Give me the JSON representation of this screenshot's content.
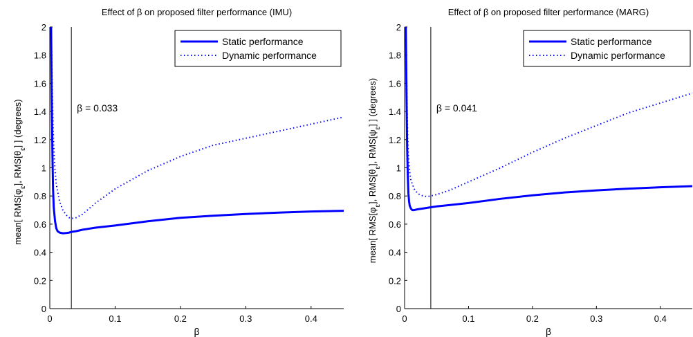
{
  "charts": [
    {
      "id": "imu",
      "title": "Effect of β on proposed filter performance (IMU)",
      "xlabel": "β",
      "ylabel": {
        "prefix": "mean[ RMS[",
        "parts": [
          {
            "sym": "φ",
            "sub": "ε"
          },
          {
            "sep": "], RMS[",
            "sym": "θ",
            "sub": "ε"
          }
        ],
        "suffix": "] ] (degrees)"
      },
      "annotation": "β = 0.033",
      "vline_x": 0.033
    },
    {
      "id": "marg",
      "title": "Effect of β on proposed filter performance (MARG)",
      "xlabel": "β",
      "ylabel": {
        "prefix": "mean[ RMS[",
        "parts": [
          {
            "sym": "φ",
            "sub": "ε"
          },
          {
            "sep": "], RMS[",
            "sym": "θ",
            "sub": "ε"
          },
          {
            "sep": "], RMS[",
            "sym": "ψ",
            "sub": "ε"
          }
        ],
        "suffix": "] ] (degrees)"
      },
      "annotation": "β = 0.041",
      "vline_x": 0.041
    }
  ],
  "chart_data": [
    {
      "type": "line",
      "title": "Effect of β on proposed filter performance (IMU)",
      "xlabel": "β",
      "ylabel": "mean[ RMS[φε], RMS[θε] ] (degrees)",
      "xlim": [
        0,
        0.45
      ],
      "ylim": [
        0,
        2
      ],
      "xticks": [
        0,
        0.1,
        0.2,
        0.3,
        0.4
      ],
      "xticklabels": [
        "0",
        "0.1",
        "0.2",
        "0.3",
        "0.4"
      ],
      "yticks": [
        0,
        0.2,
        0.4,
        0.6,
        0.8,
        1,
        1.2,
        1.4,
        1.6,
        1.8,
        2
      ],
      "yticklabels": [
        "0",
        "0.2",
        "0.4",
        "0.6",
        "0.8",
        "1",
        "1.2",
        "1.4",
        "1.6",
        "1.8",
        "2"
      ],
      "legend_position": "top-right",
      "grid": false,
      "series": [
        {
          "name": "Static performance",
          "style": "solid",
          "color": "#0000ff",
          "x": [
            0.002,
            0.003,
            0.004,
            0.005,
            0.006,
            0.008,
            0.01,
            0.012,
            0.015,
            0.02,
            0.025,
            0.03,
            0.033,
            0.04,
            0.05,
            0.07,
            0.1,
            0.15,
            0.2,
            0.25,
            0.3,
            0.35,
            0.4,
            0.45
          ],
          "y": [
            2.0,
            1.5,
            1.1,
            0.85,
            0.72,
            0.62,
            0.57,
            0.55,
            0.54,
            0.535,
            0.537,
            0.54,
            0.545,
            0.55,
            0.56,
            0.575,
            0.59,
            0.62,
            0.645,
            0.66,
            0.672,
            0.682,
            0.69,
            0.695
          ]
        },
        {
          "name": "Dynamic performance",
          "style": "dotted",
          "color": "#0000ff",
          "x": [
            0.002,
            0.003,
            0.004,
            0.005,
            0.006,
            0.008,
            0.01,
            0.015,
            0.02,
            0.025,
            0.03,
            0.033,
            0.04,
            0.05,
            0.07,
            0.1,
            0.15,
            0.2,
            0.25,
            0.3,
            0.35,
            0.4,
            0.45
          ],
          "y": [
            2.0,
            1.8,
            1.5,
            1.3,
            1.15,
            0.98,
            0.88,
            0.76,
            0.7,
            0.665,
            0.645,
            0.64,
            0.645,
            0.67,
            0.75,
            0.85,
            0.98,
            1.08,
            1.16,
            1.21,
            1.26,
            1.31,
            1.36
          ]
        }
      ],
      "annotations": [
        "β = 0.033"
      ]
    },
    {
      "type": "line",
      "title": "Effect of β on proposed filter performance (MARG)",
      "xlabel": "β",
      "ylabel": "mean[ RMS[φε], RMS[θε], RMS[ψε] ] (degrees)",
      "xlim": [
        0,
        0.45
      ],
      "ylim": [
        0,
        2
      ],
      "xticks": [
        0,
        0.1,
        0.2,
        0.3,
        0.4
      ],
      "xticklabels": [
        "0",
        "0.1",
        "0.2",
        "0.3",
        "0.4"
      ],
      "yticks": [
        0,
        0.2,
        0.4,
        0.6,
        0.8,
        1,
        1.2,
        1.4,
        1.6,
        1.8,
        2
      ],
      "yticklabels": [
        "0",
        "0.2",
        "0.4",
        "0.6",
        "0.8",
        "1",
        "1.2",
        "1.4",
        "1.6",
        "1.8",
        "2"
      ],
      "legend_position": "top-right",
      "grid": false,
      "series": [
        {
          "name": "Static performance",
          "style": "solid",
          "color": "#0000ff",
          "x": [
            0.002,
            0.003,
            0.004,
            0.005,
            0.006,
            0.007,
            0.008,
            0.01,
            0.012,
            0.015,
            0.02,
            0.03,
            0.041,
            0.05,
            0.07,
            0.1,
            0.15,
            0.2,
            0.25,
            0.3,
            0.35,
            0.4,
            0.45
          ],
          "y": [
            2.0,
            1.5,
            1.15,
            0.95,
            0.82,
            0.76,
            0.73,
            0.71,
            0.7,
            0.7,
            0.705,
            0.712,
            0.72,
            0.726,
            0.735,
            0.75,
            0.78,
            0.805,
            0.825,
            0.84,
            0.852,
            0.862,
            0.87
          ]
        },
        {
          "name": "Dynamic performance",
          "style": "dotted",
          "color": "#0000ff",
          "x": [
            0.002,
            0.003,
            0.004,
            0.005,
            0.006,
            0.008,
            0.01,
            0.015,
            0.02,
            0.025,
            0.03,
            0.035,
            0.041,
            0.05,
            0.07,
            0.1,
            0.15,
            0.2,
            0.25,
            0.3,
            0.35,
            0.4,
            0.45
          ],
          "y": [
            2.0,
            1.7,
            1.4,
            1.2,
            1.08,
            0.97,
            0.91,
            0.85,
            0.82,
            0.805,
            0.8,
            0.795,
            0.8,
            0.81,
            0.84,
            0.9,
            1.0,
            1.11,
            1.21,
            1.3,
            1.39,
            1.46,
            1.53
          ]
        }
      ],
      "annotations": [
        "β = 0.041"
      ]
    }
  ]
}
